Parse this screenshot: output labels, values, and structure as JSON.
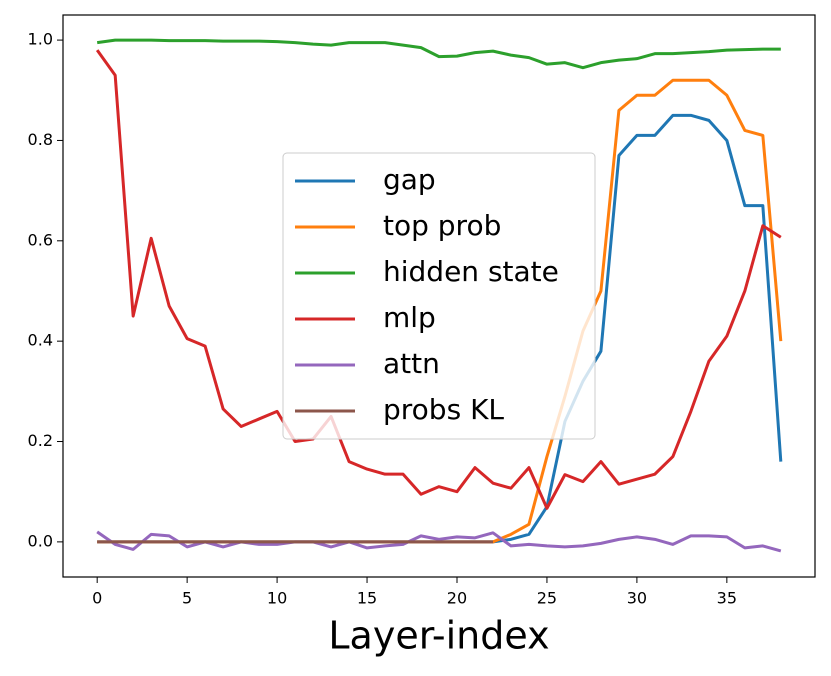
{
  "chart_data": {
    "type": "line",
    "x_label": "Layer-index",
    "x": [
      0,
      1,
      2,
      3,
      4,
      5,
      6,
      7,
      8,
      9,
      10,
      11,
      12,
      13,
      14,
      15,
      16,
      17,
      18,
      19,
      20,
      21,
      22,
      23,
      24,
      25,
      26,
      27,
      28,
      29,
      30,
      31,
      32,
      33,
      34,
      35,
      36,
      37,
      38
    ],
    "xlim": [
      -1.9,
      39.9
    ],
    "xticks": [
      0,
      5,
      10,
      15,
      20,
      25,
      30,
      35
    ],
    "ylim": [
      -0.07,
      1.05
    ],
    "yticks": [
      {
        "value": 0,
        "label": "0.0"
      },
      {
        "value": 0.2,
        "label": "0.2"
      },
      {
        "value": 0.4,
        "label": "0.4"
      },
      {
        "value": 0.6,
        "label": "0.6"
      },
      {
        "value": 0.8,
        "label": "0.8"
      },
      {
        "value": 1,
        "label": "1.0"
      }
    ],
    "legend": "center",
    "series": [
      {
        "name": "gap",
        "color": "#1f77b4",
        "values": [
          0,
          0,
          0,
          0,
          0,
          0,
          0,
          0,
          0,
          0,
          0,
          0,
          0,
          0,
          0,
          0,
          0,
          0,
          0,
          0,
          0,
          0,
          0,
          0.005,
          0.015,
          0.07,
          0.24,
          0.32,
          0.38,
          0.77,
          0.81,
          0.81,
          0.85,
          0.85,
          0.84,
          0.8,
          0.67,
          0.67,
          0.16
        ]
      },
      {
        "name": "top prob",
        "color": "#ff7f0e",
        "values": [
          0,
          0,
          0,
          0,
          0,
          0,
          0,
          0,
          0,
          0,
          0,
          0,
          0,
          0,
          0,
          0,
          0,
          0,
          0,
          0,
          0,
          0,
          0,
          0.015,
          0.035,
          0.17,
          0.29,
          0.42,
          0.5,
          0.86,
          0.89,
          0.89,
          0.92,
          0.92,
          0.92,
          0.89,
          0.82,
          0.81,
          0.4
        ]
      },
      {
        "name": "hidden state",
        "color": "#2ca02c",
        "values": [
          0.995,
          1.0,
          1.0,
          1.0,
          0.999,
          0.999,
          0.999,
          0.998,
          0.998,
          0.998,
          0.997,
          0.995,
          0.992,
          0.99,
          0.995,
          0.995,
          0.995,
          0.99,
          0.985,
          0.967,
          0.968,
          0.975,
          0.978,
          0.97,
          0.965,
          0.952,
          0.955,
          0.945,
          0.955,
          0.96,
          0.963,
          0.973,
          0.973,
          0.975,
          0.977,
          0.98,
          0.981,
          0.982,
          0.982
        ]
      },
      {
        "name": "mlp",
        "color": "#d62728",
        "values": [
          0.98,
          0.93,
          0.45,
          0.605,
          0.47,
          0.405,
          0.39,
          0.265,
          0.23,
          0.245,
          0.26,
          0.2,
          0.205,
          0.25,
          0.16,
          0.145,
          0.135,
          0.135,
          0.095,
          0.11,
          0.1,
          0.148,
          0.117,
          0.107,
          0.148,
          0.067,
          0.134,
          0.12,
          0.16,
          0.115,
          0.125,
          0.135,
          0.17,
          0.26,
          0.36,
          0.41,
          0.5,
          0.63,
          0.607
        ]
      },
      {
        "name": "attn",
        "color": "#9467bd",
        "values": [
          0.02,
          -0.005,
          -0.015,
          0.015,
          0.012,
          -0.01,
          0,
          -0.01,
          0,
          -0.005,
          -0.005,
          0,
          0,
          -0.01,
          0,
          -0.012,
          -0.008,
          -0.005,
          0.012,
          0.005,
          0.01,
          0.008,
          0.018,
          -0.008,
          -0.005,
          -0.008,
          -0.01,
          -0.008,
          -0.003,
          0.005,
          0.01,
          0.005,
          -0.005,
          0.012,
          0.012,
          0.01,
          -0.012,
          -0.008,
          -0.018
        ]
      },
      {
        "name": "probs KL",
        "color": "#8c564b",
        "values": [
          0,
          0,
          0,
          0,
          0,
          0,
          0,
          0,
          0,
          0,
          0,
          0,
          0,
          0,
          0,
          0,
          0,
          0,
          0,
          0,
          0,
          0,
          0,
          null,
          null,
          null,
          null,
          null,
          null,
          null,
          null,
          null,
          null,
          null,
          null,
          null,
          null,
          null,
          null
        ]
      }
    ]
  }
}
